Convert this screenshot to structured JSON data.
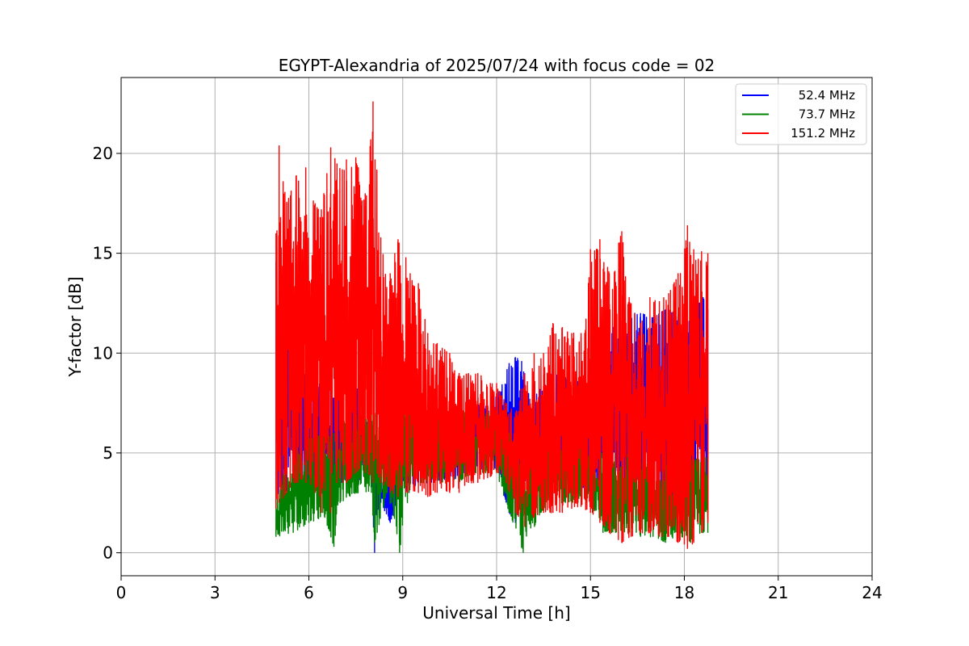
{
  "chart_data": {
    "type": "line",
    "title": "EGYPT-Alexandria of 2025/07/24 with focus code = 02",
    "xlabel": "Universal Time [h]",
    "ylabel": "Y-factor [dB]",
    "xlim": [
      0,
      24
    ],
    "ylim": [
      -1.15,
      23.8
    ],
    "xticks": [
      0,
      3,
      6,
      9,
      12,
      15,
      18,
      21,
      24
    ],
    "yticks": [
      0,
      5,
      10,
      15,
      20
    ],
    "grid": true,
    "legend_position": "top-right",
    "series": [
      {
        "name": "52.4 MHz",
        "color": "#0000ff",
        "x": [
          4.95,
          5.5,
          6.0,
          6.5,
          7.0,
          7.5,
          8.0,
          8.1,
          8.3,
          8.6,
          8.9,
          9.2,
          9.6,
          10.0,
          10.4,
          10.8,
          11.2,
          11.6,
          12.0,
          12.4,
          12.6,
          12.8,
          13.0,
          13.4,
          13.8,
          14.2,
          14.6,
          15.0,
          15.4,
          15.8,
          16.2,
          16.6,
          17.0,
          17.4,
          17.8,
          18.2,
          18.6,
          18.75
        ],
        "low": [
          2.5,
          3.0,
          3.0,
          3.2,
          3.5,
          3.5,
          3.5,
          0.0,
          2.5,
          1.5,
          3.0,
          3.0,
          3.5,
          3.5,
          3.5,
          3.8,
          4.0,
          4.0,
          4.2,
          2.0,
          1.5,
          2.5,
          3.0,
          3.0,
          2.5,
          3.0,
          3.0,
          3.0,
          3.0,
          3.0,
          3.0,
          3.0,
          2.5,
          2.5,
          2.0,
          1.5,
          2.0,
          2.0
        ],
        "high": [
          14.6,
          12.0,
          10.0,
          9.0,
          9.0,
          8.5,
          6.0,
          5.0,
          3.8,
          3.5,
          6.5,
          7.0,
          7.0,
          7.2,
          7.0,
          7.0,
          7.5,
          7.5,
          8.0,
          9.5,
          9.8,
          9.6,
          8.0,
          8.2,
          9.1,
          8.8,
          8.6,
          9.2,
          10.5,
          11.5,
          12.0,
          12.0,
          11.8,
          12.2,
          12.0,
          12.0,
          12.8,
          12.2
        ]
      },
      {
        "name": "73.7 MHz",
        "color": "#008000",
        "x": [
          4.95,
          5.5,
          6.0,
          6.5,
          6.8,
          7.0,
          7.5,
          8.0,
          8.1,
          8.5,
          8.9,
          9.2,
          9.6,
          10.0,
          10.4,
          10.8,
          11.2,
          11.6,
          12.0,
          12.4,
          12.85,
          13.4,
          13.8,
          14.2,
          14.6,
          15.0,
          15.4,
          15.8,
          16.2,
          16.6,
          17.0,
          17.4,
          17.8,
          18.2,
          18.6,
          18.75
        ],
        "low": [
          0.8,
          1.0,
          1.5,
          1.8,
          0.3,
          2.5,
          3.0,
          3.0,
          0.5,
          3.0,
          0.0,
          3.0,
          3.5,
          3.5,
          3.5,
          3.5,
          4.0,
          4.0,
          4.0,
          2.0,
          0.0,
          2.0,
          2.5,
          2.5,
          2.5,
          2.5,
          1.0,
          1.0,
          1.0,
          0.8,
          0.8,
          0.5,
          0.8,
          0.5,
          1.0,
          1.0
        ],
        "high": [
          3.0,
          5.0,
          6.0,
          6.0,
          6.0,
          6.5,
          7.0,
          7.0,
          7.0,
          7.2,
          7.6,
          7.5,
          7.2,
          7.2,
          7.0,
          7.2,
          7.0,
          7.0,
          7.0,
          6.0,
          5.5,
          5.5,
          5.5,
          5.5,
          5.5,
          5.0,
          5.0,
          5.0,
          5.0,
          5.0,
          5.0,
          5.0,
          5.0,
          5.0,
          5.0,
          5.0
        ]
      },
      {
        "name": "151.2 MHz",
        "color": "#ff0000",
        "x": [
          4.95,
          5.05,
          5.3,
          5.6,
          5.9,
          6.2,
          6.4,
          6.7,
          6.9,
          7.2,
          7.5,
          7.8,
          8.05,
          8.3,
          8.6,
          8.85,
          9.1,
          9.5,
          9.8,
          10.1,
          10.5,
          10.8,
          11.1,
          11.4,
          11.8,
          12.0,
          12.3,
          12.6,
          12.9,
          13.2,
          13.5,
          13.8,
          14.1,
          14.4,
          14.7,
          15.0,
          15.3,
          15.6,
          16.0,
          16.3,
          16.6,
          16.9,
          17.2,
          17.5,
          17.8,
          18.1,
          18.3,
          18.55,
          18.75
        ],
        "low": [
          2.2,
          2.5,
          3.0,
          3.5,
          3.5,
          3.0,
          2.0,
          2.0,
          3.5,
          3.5,
          4.0,
          4.0,
          3.5,
          3.5,
          3.0,
          2.8,
          3.0,
          3.0,
          2.8,
          3.0,
          3.0,
          3.0,
          3.5,
          3.5,
          3.8,
          4.0,
          3.5,
          2.0,
          1.3,
          1.8,
          2.0,
          2.0,
          2.0,
          2.2,
          2.3,
          2.0,
          1.5,
          1.0,
          0.5,
          0.8,
          1.0,
          1.0,
          0.8,
          0.8,
          0.5,
          0.2,
          0.5,
          1.0,
          1.5
        ],
        "high": [
          16.0,
          20.4,
          17.5,
          18.9,
          19.3,
          17.5,
          17.2,
          20.3,
          19.5,
          19.7,
          19.8,
          18.0,
          22.6,
          15.8,
          14.0,
          15.7,
          14.8,
          13.5,
          11.0,
          10.5,
          10.0,
          9.0,
          9.0,
          9.0,
          8.5,
          8.5,
          7.5,
          7.0,
          9.0,
          10.0,
          10.0,
          11.5,
          11.3,
          11.0,
          11.0,
          15.2,
          15.7,
          14.0,
          16.1,
          12.5,
          11.5,
          12.8,
          12.6,
          13.0,
          14.0,
          16.4,
          15.2,
          15.1,
          15.0
        ]
      }
    ]
  }
}
